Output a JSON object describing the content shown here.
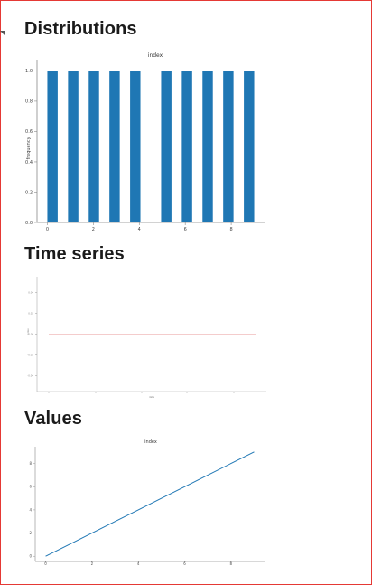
{
  "sections": [
    {
      "title": "Distributions",
      "chart": {
        "type": "bar",
        "title": "index",
        "ylabel": "frequency",
        "xticks": [
          "0",
          "2",
          "4",
          "6",
          "8"
        ],
        "yticks": [
          "0.0",
          "0.2",
          "0.4",
          "0.6",
          "0.8",
          "1.0"
        ]
      }
    },
    {
      "title": "Time series",
      "chart": {
        "type": "line",
        "title": "",
        "ylabel": "index",
        "xlabel": "date",
        "yticks": [
          "-0.04",
          "-0.02",
          "0.00",
          "0.02",
          "0.04"
        ]
      }
    },
    {
      "title": "Values",
      "chart": {
        "type": "line",
        "title": "index",
        "xticks": [
          "0",
          "2",
          "4",
          "6",
          "8"
        ],
        "yticks": [
          "0",
          "2",
          "4",
          "6",
          "8"
        ]
      }
    }
  ],
  "chart_data": [
    {
      "type": "bar",
      "title": "index",
      "xlabel": "",
      "ylabel": "frequency",
      "bars": [
        {
          "x0": 0.0,
          "x1": 0.45,
          "value": 1.0
        },
        {
          "x0": 0.9,
          "x1": 1.35,
          "value": 1.0
        },
        {
          "x0": 1.8,
          "x1": 2.25,
          "value": 1.0
        },
        {
          "x0": 2.7,
          "x1": 3.15,
          "value": 1.0
        },
        {
          "x0": 3.6,
          "x1": 4.05,
          "value": 1.0
        },
        {
          "x0": 4.95,
          "x1": 5.4,
          "value": 1.0
        },
        {
          "x0": 5.85,
          "x1": 6.3,
          "value": 1.0
        },
        {
          "x0": 6.75,
          "x1": 7.2,
          "value": 1.0
        },
        {
          "x0": 7.65,
          "x1": 8.1,
          "value": 1.0
        },
        {
          "x0": 8.55,
          "x1": 9.0,
          "value": 1.0
        }
      ],
      "xlim": [
        -0.45,
        9.45
      ],
      "ylim": [
        0,
        1.05
      ],
      "color": "#1f77b4"
    },
    {
      "type": "line",
      "title": "",
      "xlabel": "date",
      "ylabel": "index",
      "series": [
        {
          "values": [
            0,
            0,
            0,
            0,
            0,
            0,
            0,
            0,
            0,
            0
          ]
        }
      ],
      "ylim": [
        -0.055,
        0.055
      ],
      "color": "#f4cccc"
    },
    {
      "type": "line",
      "title": "index",
      "xlabel": "",
      "ylabel": "",
      "x": [
        0,
        1,
        2,
        3,
        4,
        5,
        6,
        7,
        8,
        9
      ],
      "series": [
        {
          "values": [
            0,
            1,
            2,
            3,
            4,
            5,
            6,
            7,
            8,
            9
          ]
        }
      ],
      "xlim": [
        -0.45,
        9.45
      ],
      "ylim": [
        -0.45,
        9.45
      ],
      "color": "#1f77b4"
    }
  ]
}
